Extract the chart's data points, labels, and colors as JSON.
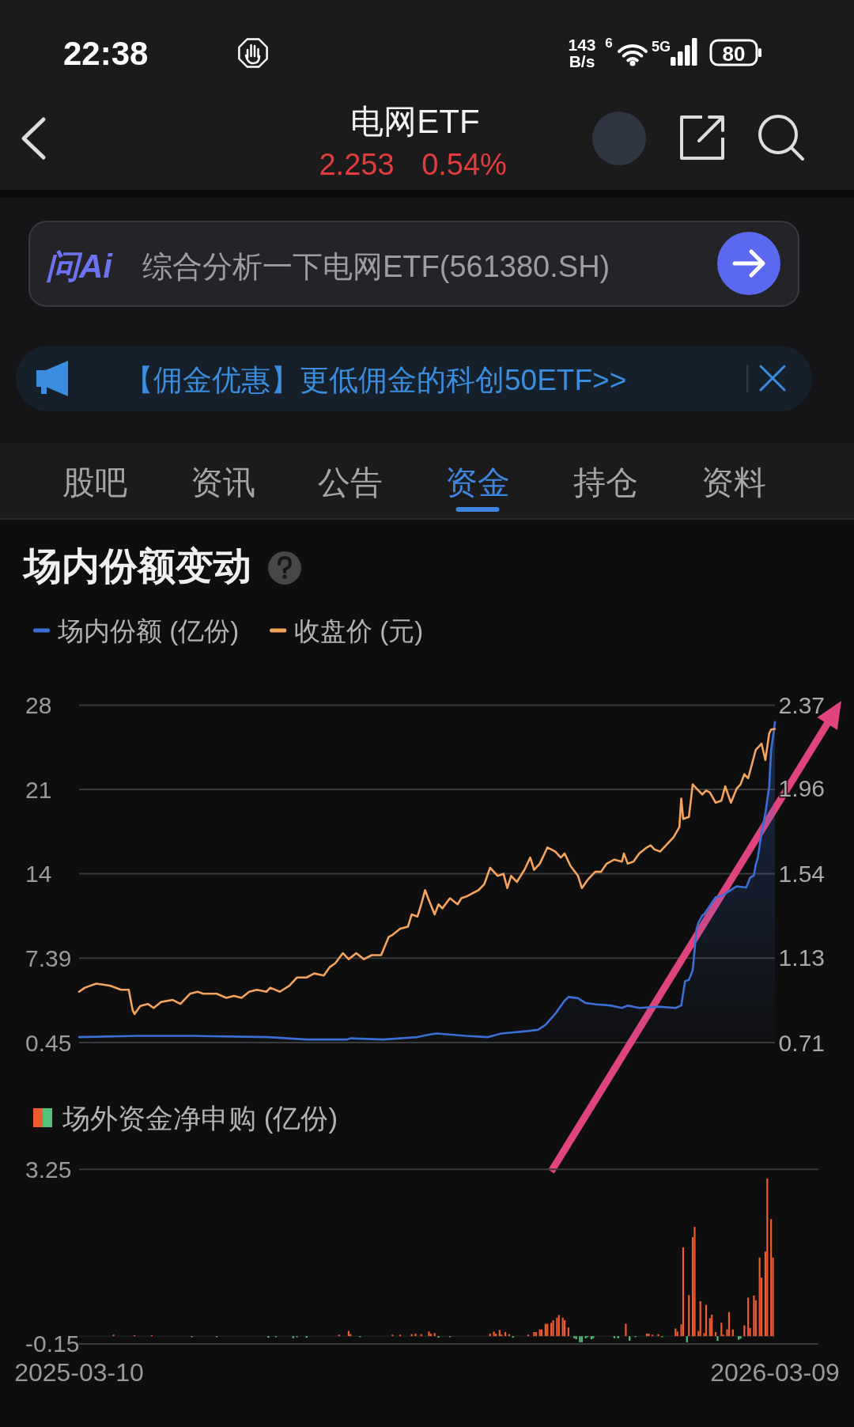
{
  "chart_data": [
    {
      "type": "other",
      "title": "电网ETF",
      "annotations": [
        "22:38",
        "143",
        "B/s",
        "6",
        "5G",
        "80",
        "2.253",
        "0.54%",
        "问Ai",
        "综合分析一下电网ETF(561380.SH)",
        "【佣金优惠】更低佣金的科创50ETF>>",
        "股吧",
        "资讯",
        "公告",
        "资金",
        "持仓",
        "资料"
      ]
    },
    {
      "type": "line",
      "title": "场内份额变动",
      "legend": "top left",
      "grid": "y",
      "tick_labels": "y",
      "xlim": [
        "2025-03-10",
        "2026-03-09"
      ],
      "ylim": [
        0.45,
        28.2
      ],
      "yticks": [
        0.45,
        7.39,
        {
          "value": 14.33,
          "label": "14"
        },
        {
          "value": 21.26,
          "label": "21"
        },
        {
          "value": 28.2,
          "label": "28"
        }
      ],
      "y2lim": [
        0.71,
        2.37
      ],
      "y2ticks": [
        0.71,
        1.13,
        1.54,
        1.96,
        2.37
      ],
      "series": [
        {
          "name": "场内份额 (亿份)",
          "type": "area",
          "color": "#3b6fd6",
          "x": [
            "2025-03-10",
            "2025-04-10",
            "2025-05-07",
            "2025-06-17",
            "2025-07-07",
            "2025-07-28",
            "2025-07-30",
            "2025-08-16",
            "2025-09-03",
            "2025-09-09",
            "2025-09-13",
            "2025-09-28",
            "2025-10-10",
            "2025-10-17",
            "2025-10-31",
            "2025-11-05",
            "2025-11-09",
            "2025-11-14",
            "2025-11-19",
            "2025-11-21",
            "2025-11-26",
            "2025-11-30",
            "2025-12-05",
            "2025-12-13",
            "2025-12-19",
            "2025-12-22",
            "2025-12-28",
            "2026-01-07",
            "2026-01-16",
            "2026-01-19",
            "2026-01-21",
            "2026-01-23",
            "2026-01-25",
            "2026-01-27",
            "2026-01-28",
            "2026-01-30",
            "2026-01-31",
            "2026-02-03",
            "2026-02-06",
            "2026-02-09",
            "2026-02-11",
            "2026-02-14",
            "2026-02-17",
            "2026-02-22",
            "2026-02-24",
            "2026-02-26",
            "2026-02-27",
            "2026-02-28",
            "2026-03-02",
            "2026-03-04",
            "2026-03-06",
            "2026-03-07",
            "2026-03-08",
            "2026-03-09"
          ],
          "values": [
            0.9,
            1.0,
            1.0,
            0.9,
            0.7,
            0.7,
            0.8,
            0.7,
            0.9,
            1.1,
            1.2,
            1.0,
            0.9,
            1.2,
            1.4,
            1.5,
            1.9,
            2.8,
            3.9,
            4.2,
            4.1,
            3.7,
            3.6,
            3.5,
            3.3,
            3.5,
            3.3,
            3.4,
            3.3,
            3.5,
            5.5,
            5.6,
            6.4,
            9.8,
            10.3,
            10.9,
            11.0,
            11.7,
            12.4,
            12.5,
            12.7,
            13.0,
            13.3,
            13.2,
            14.0,
            14.2,
            15.1,
            15.6,
            17.7,
            19.3,
            21.5,
            24.5,
            25.6,
            26.8
          ]
        },
        {
          "name": "收盘价 (元)",
          "color": "#f4a45c",
          "axis": "y2",
          "x": [
            "2025-03-10",
            "2025-03-13",
            "2025-03-19",
            "2025-03-26",
            "2025-04-01",
            "2025-04-05",
            "2025-04-07",
            "2025-04-08",
            "2025-04-11",
            "2025-04-15",
            "2025-04-18",
            "2025-04-22",
            "2025-04-28",
            "2025-05-02",
            "2025-05-07",
            "2025-05-11",
            "2025-05-14",
            "2025-05-21",
            "2025-05-26",
            "2025-05-30",
            "2025-06-03",
            "2025-06-07",
            "2025-06-11",
            "2025-06-16",
            "2025-06-18",
            "2025-06-23",
            "2025-06-28",
            "2025-07-02",
            "2025-07-07",
            "2025-07-11",
            "2025-07-16",
            "2025-07-19",
            "2025-07-22",
            "2025-07-26",
            "2025-07-29",
            "2025-08-02",
            "2025-08-06",
            "2025-08-10",
            "2025-08-15",
            "2025-08-19",
            "2025-08-21",
            "2025-08-25",
            "2025-08-29",
            "2025-08-31",
            "2025-09-03",
            "2025-09-05",
            "2025-09-07",
            "2025-09-09",
            "2025-09-12",
            "2025-09-14",
            "2025-09-16",
            "2025-09-20",
            "2025-09-24",
            "2025-09-26",
            "2025-09-29",
            "2025-10-05",
            "2025-10-08",
            "2025-10-11",
            "2025-10-15",
            "2025-10-18",
            "2025-10-20",
            "2025-10-22",
            "2025-10-25",
            "2025-10-29",
            "2025-11-01",
            "2025-11-03",
            "2025-11-06",
            "2025-11-10",
            "2025-11-14",
            "2025-11-17",
            "2025-11-19",
            "2025-11-22",
            "2025-11-26",
            "2025-11-28",
            "2025-12-01",
            "2025-12-05",
            "2025-12-08",
            "2025-12-11",
            "2025-12-15",
            "2025-12-19",
            "2025-12-20",
            "2025-12-22",
            "2025-12-25",
            "2025-12-28",
            "2026-01-01",
            "2026-01-03",
            "2026-01-05",
            "2026-01-08",
            "2026-01-12",
            "2026-01-15",
            "2026-01-18",
            "2026-01-19",
            "2026-01-20",
            "2026-01-23",
            "2026-01-25",
            "2026-01-27",
            "2026-01-30",
            "2026-02-01",
            "2026-02-03",
            "2026-02-06",
            "2026-02-09",
            "2026-02-11",
            "2026-02-14",
            "2026-02-17",
            "2026-02-19",
            "2026-02-21",
            "2026-02-23",
            "2026-02-25",
            "2026-02-27",
            "2026-03-01",
            "2026-03-02",
            "2026-03-04",
            "2026-03-06",
            "2026-03-07",
            "2026-03-09"
          ],
          "values": [
            0.96,
            0.98,
            1.0,
            0.99,
            0.97,
            0.97,
            0.87,
            0.85,
            0.89,
            0.9,
            0.88,
            0.91,
            0.92,
            0.9,
            0.95,
            0.96,
            0.95,
            0.95,
            0.93,
            0.94,
            0.93,
            0.96,
            0.97,
            0.96,
            0.98,
            0.96,
            0.99,
            1.03,
            1.03,
            1.05,
            1.04,
            1.08,
            1.1,
            1.15,
            1.12,
            1.15,
            1.12,
            1.14,
            1.14,
            1.23,
            1.24,
            1.27,
            1.28,
            1.34,
            1.33,
            1.39,
            1.46,
            1.41,
            1.34,
            1.39,
            1.37,
            1.42,
            1.39,
            1.42,
            1.43,
            1.46,
            1.49,
            1.57,
            1.53,
            1.54,
            1.47,
            1.53,
            1.5,
            1.56,
            1.62,
            1.56,
            1.59,
            1.67,
            1.65,
            1.62,
            1.64,
            1.58,
            1.53,
            1.47,
            1.51,
            1.55,
            1.55,
            1.59,
            1.61,
            1.6,
            1.64,
            1.59,
            1.6,
            1.64,
            1.67,
            1.68,
            1.66,
            1.65,
            1.69,
            1.72,
            1.77,
            1.91,
            1.81,
            1.82,
            1.98,
            1.96,
            1.93,
            1.95,
            1.94,
            1.89,
            1.9,
            1.97,
            1.89,
            1.96,
            1.98,
            2.03,
            2.01,
            2.08,
            2.15,
            2.17,
            2.18,
            2.1,
            2.23,
            2.25,
            2.253
          ]
        }
      ]
    },
    {
      "type": "bar",
      "legend": "top left",
      "xlim": [
        "2025-03-10",
        "2026-03-09"
      ],
      "xticks": [
        "2025-03-10",
        "2026-03-09"
      ],
      "ylim": [
        -0.15,
        3.25
      ],
      "yticks": [
        -0.15,
        3.25
      ],
      "series": [
        {
          "name": "场外资金净申购 (亿份)",
          "x": [
            "2025-03-28",
            "2025-04-08",
            "2025-04-17",
            "2025-05-08",
            "2025-05-21",
            "2025-06-17",
            "2025-06-21",
            "2025-06-30",
            "2025-07-02",
            "2025-07-07",
            "2025-07-24",
            "2025-07-29",
            "2025-07-30",
            "2025-08-04",
            "2025-08-21",
            "2025-08-25",
            "2025-08-31",
            "2025-09-02",
            "2025-09-05",
            "2025-09-09",
            "2025-09-10",
            "2025-09-12",
            "2025-09-14",
            "2025-09-20",
            "2025-10-11",
            "2025-10-13",
            "2025-10-14",
            "2025-10-16",
            "2025-10-17",
            "2025-10-19",
            "2025-10-21",
            "2025-10-23",
            "2025-10-31",
            "2025-11-03",
            "2025-11-04",
            "2025-11-06",
            "2025-11-07",
            "2025-11-09",
            "2025-11-10",
            "2025-11-12",
            "2025-11-13",
            "2025-11-15",
            "2025-11-16",
            "2025-11-18",
            "2025-11-19",
            "2025-11-21",
            "2025-11-24",
            "2025-11-25",
            "2025-11-27",
            "2025-11-28",
            "2025-11-30",
            "2025-12-01",
            "2025-12-03",
            "2025-12-04",
            "2025-12-15",
            "2025-12-17",
            "2025-12-21",
            "2025-12-23",
            "2025-12-26",
            "2026-01-01",
            "2026-01-02",
            "2026-01-04",
            "2026-01-07",
            "2026-01-09",
            "2026-01-16",
            "2026-01-17",
            "2026-01-19",
            "2026-01-20",
            "2026-01-22",
            "2026-01-23",
            "2026-01-25",
            "2026-01-26",
            "2026-01-28",
            "2026-01-29",
            "2026-01-31",
            "2026-02-01",
            "2026-02-03",
            "2026-02-04",
            "2026-02-06",
            "2026-02-07",
            "2026-02-09",
            "2026-02-10",
            "2026-02-12",
            "2026-02-13",
            "2026-02-15",
            "2026-02-18",
            "2026-02-19",
            "2026-02-21",
            "2026-02-23",
            "2026-02-24",
            "2026-02-26",
            "2026-02-27",
            "2026-03-01",
            "2026-03-02",
            "2026-03-04",
            "2026-03-05",
            "2026-03-07",
            "2026-03-08"
          ],
          "values": [
            0.03,
            0.02,
            0.02,
            -0.02,
            -0.02,
            -0.03,
            -0.02,
            -0.04,
            -0.02,
            -0.03,
            0.03,
            0.1,
            0.04,
            -0.02,
            0.03,
            0.03,
            0.04,
            0.05,
            0.04,
            0.09,
            0.05,
            0.06,
            -0.03,
            -0.02,
            0.05,
            0.09,
            0.05,
            0.12,
            0.03,
            0.08,
            0.04,
            -0.03,
            0.03,
            0.08,
            0.08,
            0.13,
            0.13,
            0.24,
            0.24,
            0.26,
            0.31,
            0.36,
            0.41,
            0.36,
            0.31,
            0.17,
            -0.04,
            -0.06,
            -0.12,
            -0.12,
            -0.04,
            -0.02,
            -0.06,
            -0.04,
            -0.04,
            -0.04,
            0.24,
            -0.09,
            -0.02,
            0.05,
            0.05,
            0.03,
            0.04,
            -0.02,
            0.15,
            0.09,
            0.23,
            1.73,
            -0.12,
            0.8,
            1.93,
            2.13,
            0.1,
            0.68,
            0.06,
            0.61,
            0.35,
            0.42,
            0.08,
            -0.09,
            0.26,
            0.03,
            0.13,
            0.47,
            0.13,
            -0.07,
            -0.05,
            0.21,
            0.75,
            0.16,
            0.79,
            0.7,
            1.53,
            1.14,
            1.65,
            3.07,
            2.28,
            1.53
          ],
          "colors": [
            "#ef5a32",
            "#ef5a32",
            "#ef5a32",
            "#52c27a",
            "#52c27a",
            "#52c27a",
            "#52c27a",
            "#52c27a",
            "#52c27a",
            "#52c27a",
            "#ef5a32",
            "#ef5a32",
            "#ef5a32",
            "#52c27a",
            "#ef5a32",
            "#ef5a32",
            "#ef5a32",
            "#ef5a32",
            "#ef5a32",
            "#ef5a32",
            "#ef5a32",
            "#ef5a32",
            "#52c27a",
            "#52c27a",
            "#ef5a32",
            "#ef5a32",
            "#ef5a32",
            "#ef5a32",
            "#ef5a32",
            "#ef5a32",
            "#ef5a32",
            "#52c27a",
            "#ef5a32",
            "#ef5a32",
            "#ef5a32",
            "#ef5a32",
            "#ef5a32",
            "#ef5a32",
            "#ef5a32",
            "#ef5a32",
            "#ef5a32",
            "#ef5a32",
            "#ef5a32",
            "#ef5a32",
            "#ef5a32",
            "#ef5a32",
            "#52c27a",
            "#52c27a",
            "#52c27a",
            "#52c27a",
            "#52c27a",
            "#52c27a",
            "#52c27a",
            "#52c27a",
            "#52c27a",
            "#52c27a",
            "#ef5a32",
            "#52c27a",
            "#52c27a",
            "#ef5a32",
            "#ef5a32",
            "#ef5a32",
            "#ef5a32",
            "#52c27a",
            "#ef5a32",
            "#ef5a32",
            "#ef5a32",
            "#ef5a32",
            "#52c27a",
            "#ef5a32",
            "#ef5a32",
            "#ef5a32",
            "#ef5a32",
            "#ef5a32",
            "#ef5a32",
            "#ef5a32",
            "#ef5a32",
            "#ef5a32",
            "#ef5a32",
            "#52c27a",
            "#ef5a32",
            "#ef5a32",
            "#ef5a32",
            "#ef5a32",
            "#ef5a32",
            "#52c27a",
            "#52c27a",
            "#ef5a32",
            "#ef5a32",
            "#ef5a32",
            "#ef5a32",
            "#ef5a32",
            "#ef5a32",
            "#ef5a32",
            "#ef5a32",
            "#ef5a32",
            "#ef5a32",
            "#ef5a32"
          ]
        }
      ]
    }
  ]
}
